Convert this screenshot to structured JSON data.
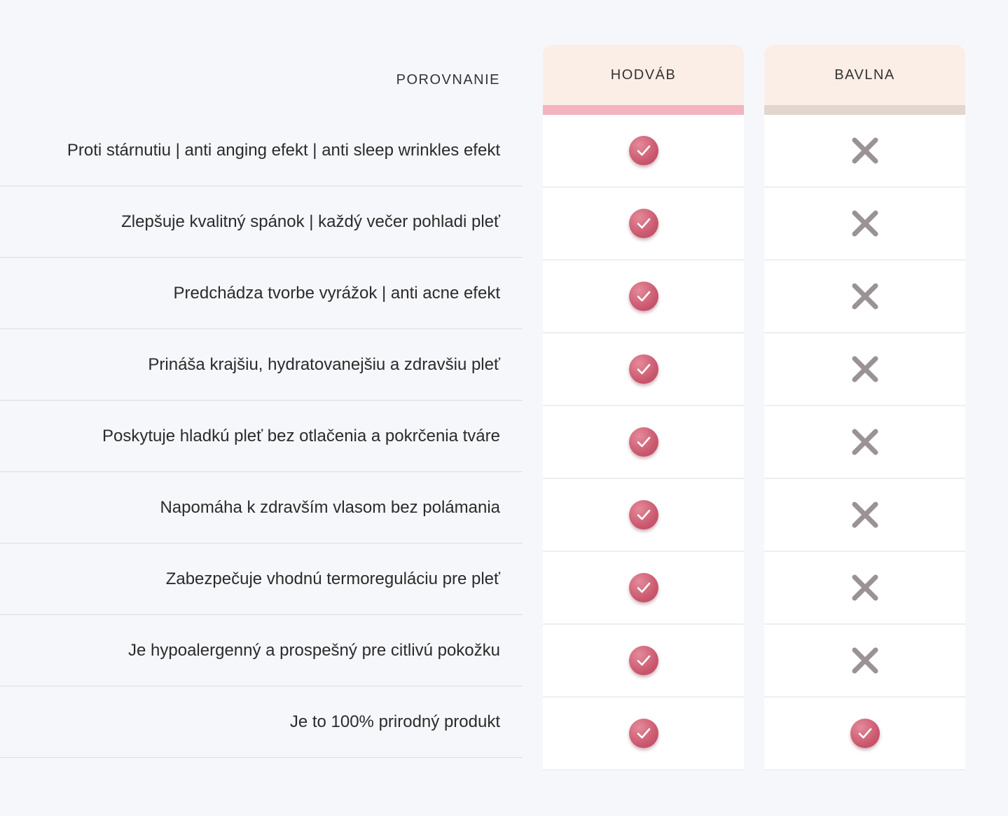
{
  "header": {
    "comparison_label": "POROVNANIE",
    "columns": [
      "HODVÁB",
      "BAVLNA"
    ]
  },
  "rows": [
    {
      "label": "Proti stárnutiu | anti anging efekt | anti sleep wrinkles efekt",
      "silk": "check",
      "cotton": "cross"
    },
    {
      "label": "Zlepšuje kvalitný spánok | každý večer pohladi pleť",
      "silk": "check",
      "cotton": "cross"
    },
    {
      "label": "Predchádza tvorbe vyrážok | anti acne efekt",
      "silk": "check",
      "cotton": "cross"
    },
    {
      "label": "Prináša krajšiu, hydratovanejšiu a zdravšiu pleť",
      "silk": "check",
      "cotton": "cross"
    },
    {
      "label": "Poskytuje hladkú pleť bez otlačenia a pokrčenia tváre",
      "silk": "check",
      "cotton": "cross"
    },
    {
      "label": "Napomáha k zdravším vlasom bez polámania",
      "silk": "check",
      "cotton": "cross"
    },
    {
      "label": "Zabezpečuje vhodnú termoreguláciu pre pleť",
      "silk": "check",
      "cotton": "cross"
    },
    {
      "label": "Je hypoalergenný a prospešný pre citlivú pokožku",
      "silk": "check",
      "cotton": "cross"
    },
    {
      "label": "Je to 100% prirodný produkt",
      "silk": "check",
      "cotton": "check"
    }
  ],
  "icons": {
    "check": "check-circle-icon",
    "cross": "cross-icon"
  },
  "colors": {
    "check": "#c9566d",
    "cross": "#9a9297",
    "silk_stripe": "#f2b5c0",
    "cotton_stripe": "#e3d6cf",
    "header_bg": "#fbeee6"
  }
}
